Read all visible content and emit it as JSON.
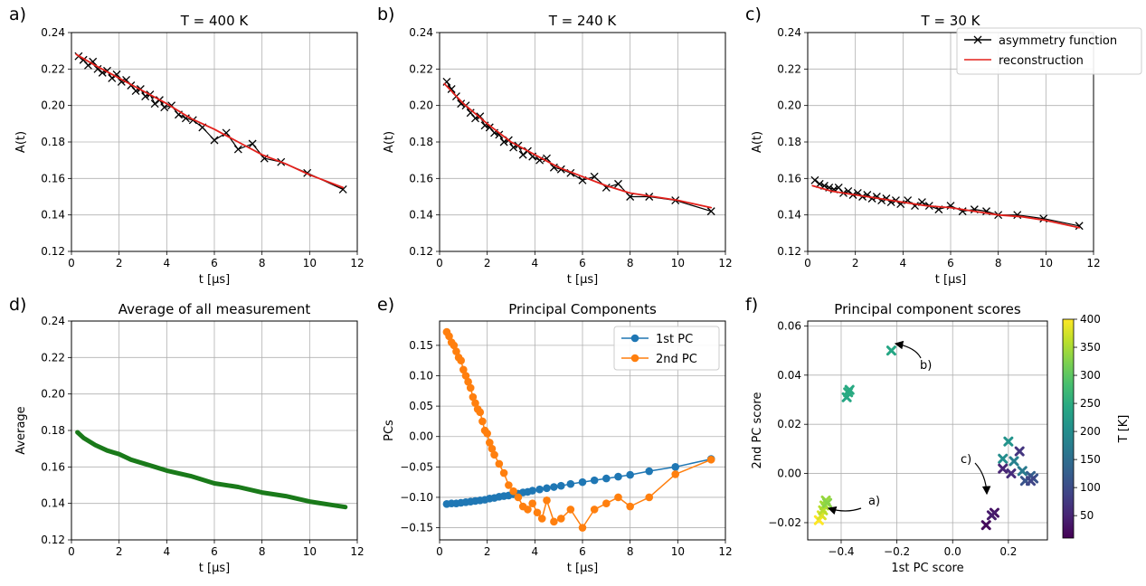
{
  "chart_data": [
    {
      "panel_label": "a)",
      "type": "line",
      "title": "T = 400 K",
      "xlabel": "t [μs]",
      "ylabel": "A(t)",
      "xlim": [
        0,
        12
      ],
      "ylim": [
        0.12,
        0.24
      ],
      "xticks": [
        "0",
        "2",
        "4",
        "6",
        "8",
        "10",
        "12"
      ],
      "yticks": [
        "0.12",
        "0.14",
        "0.16",
        "0.18",
        "0.20",
        "0.22",
        "0.24"
      ],
      "grid": true,
      "series": [
        {
          "name": "asymmetry function",
          "marker": "x",
          "color": "#000000",
          "x": [
            0.3,
            0.5,
            0.7,
            0.9,
            1.1,
            1.3,
            1.5,
            1.7,
            1.9,
            2.1,
            2.3,
            2.5,
            2.7,
            2.9,
            3.1,
            3.3,
            3.5,
            3.7,
            3.9,
            4.2,
            4.5,
            4.8,
            5.1,
            5.5,
            6.0,
            6.5,
            7.0,
            7.6,
            8.1,
            8.8,
            9.9,
            11.4
          ],
          "y": [
            0.227,
            0.225,
            0.222,
            0.224,
            0.22,
            0.218,
            0.219,
            0.215,
            0.217,
            0.213,
            0.214,
            0.211,
            0.208,
            0.209,
            0.205,
            0.206,
            0.201,
            0.203,
            0.199,
            0.2,
            0.195,
            0.193,
            0.192,
            0.188,
            0.181,
            0.185,
            0.176,
            0.179,
            0.171,
            0.169,
            0.163,
            0.154
          ]
        },
        {
          "name": "reconstruction",
          "color": "#e3201b",
          "x": [
            0.2,
            1,
            2,
            3,
            4,
            5,
            6,
            7,
            8,
            9,
            10,
            11.4
          ],
          "y": [
            0.228,
            0.222,
            0.215,
            0.208,
            0.201,
            0.193,
            0.187,
            0.18,
            0.173,
            0.168,
            0.162,
            0.155
          ]
        }
      ]
    },
    {
      "panel_label": "b)",
      "type": "line",
      "title": "T = 240 K",
      "xlabel": "t [μs]",
      "ylabel": "A(t)",
      "xlim": [
        0,
        12
      ],
      "ylim": [
        0.12,
        0.24
      ],
      "xticks": [
        "0",
        "2",
        "4",
        "6",
        "8",
        "10",
        "12"
      ],
      "yticks": [
        "0.12",
        "0.14",
        "0.16",
        "0.18",
        "0.20",
        "0.22",
        "0.24"
      ],
      "grid": true,
      "series": [
        {
          "name": "asymmetry function",
          "marker": "x",
          "color": "#000000",
          "x": [
            0.3,
            0.5,
            0.7,
            0.9,
            1.1,
            1.3,
            1.5,
            1.7,
            1.9,
            2.1,
            2.3,
            2.5,
            2.7,
            2.9,
            3.1,
            3.3,
            3.5,
            3.7,
            3.9,
            4.2,
            4.5,
            4.8,
            5.1,
            5.5,
            6.0,
            6.5,
            7.0,
            7.5,
            8.0,
            8.8,
            9.9,
            11.4
          ],
          "y": [
            0.213,
            0.209,
            0.205,
            0.201,
            0.2,
            0.196,
            0.193,
            0.194,
            0.189,
            0.188,
            0.185,
            0.184,
            0.18,
            0.181,
            0.177,
            0.178,
            0.173,
            0.175,
            0.172,
            0.17,
            0.171,
            0.166,
            0.165,
            0.163,
            0.159,
            0.161,
            0.155,
            0.157,
            0.15,
            0.15,
            0.148,
            0.142
          ]
        },
        {
          "name": "reconstruction",
          "color": "#e3201b",
          "x": [
            0.2,
            1,
            2,
            3,
            4,
            5,
            6,
            7,
            8,
            9,
            10,
            11.4
          ],
          "y": [
            0.212,
            0.201,
            0.19,
            0.18,
            0.173,
            0.166,
            0.161,
            0.156,
            0.152,
            0.15,
            0.148,
            0.144
          ]
        }
      ]
    },
    {
      "panel_label": "c)",
      "type": "line",
      "title": "T = 30 K",
      "xlabel": "t [μs]",
      "ylabel": "A(t)",
      "xlim": [
        0,
        12
      ],
      "ylim": [
        0.12,
        0.24
      ],
      "xticks": [
        "0",
        "2",
        "4",
        "6",
        "8",
        "10",
        "12"
      ],
      "yticks": [
        "0.12",
        "0.14",
        "0.16",
        "0.18",
        "0.20",
        "0.22",
        "0.24"
      ],
      "grid": true,
      "legend": {
        "placement": "upper right",
        "entries": [
          "asymmetry function",
          "reconstruction"
        ]
      },
      "series": [
        {
          "name": "asymmetry function",
          "marker": "x",
          "color": "#000000",
          "x": [
            0.3,
            0.5,
            0.7,
            0.9,
            1.1,
            1.3,
            1.5,
            1.7,
            1.9,
            2.1,
            2.3,
            2.5,
            2.7,
            2.9,
            3.1,
            3.3,
            3.5,
            3.7,
            3.9,
            4.2,
            4.5,
            4.8,
            5.1,
            5.5,
            6.0,
            6.5,
            7.0,
            7.5,
            8.0,
            8.8,
            9.9,
            11.4
          ],
          "y": [
            0.159,
            0.157,
            0.156,
            0.155,
            0.154,
            0.155,
            0.152,
            0.153,
            0.151,
            0.152,
            0.15,
            0.151,
            0.149,
            0.15,
            0.148,
            0.149,
            0.147,
            0.148,
            0.146,
            0.148,
            0.145,
            0.147,
            0.145,
            0.143,
            0.145,
            0.142,
            0.143,
            0.142,
            0.14,
            0.14,
            0.138,
            0.134
          ]
        },
        {
          "name": "reconstruction",
          "color": "#e3201b",
          "x": [
            0.2,
            1,
            2,
            3,
            4,
            5,
            6,
            7,
            8,
            9,
            10,
            11.4
          ],
          "y": [
            0.156,
            0.153,
            0.151,
            0.149,
            0.147,
            0.145,
            0.144,
            0.142,
            0.14,
            0.139,
            0.137,
            0.133
          ]
        }
      ]
    },
    {
      "panel_label": "d)",
      "type": "line",
      "title": "Average of all measurement",
      "xlabel": "t [μs]",
      "ylabel": "Average",
      "xlim": [
        0,
        12
      ],
      "ylim": [
        0.12,
        0.24
      ],
      "xticks": [
        "0",
        "2",
        "4",
        "6",
        "8",
        "10",
        "12"
      ],
      "yticks": [
        "0.12",
        "0.14",
        "0.16",
        "0.18",
        "0.20",
        "0.22",
        "0.24"
      ],
      "grid": true,
      "series": [
        {
          "color": "#1a7a1a",
          "x": [
            0.25,
            0.5,
            1,
            1.5,
            2,
            2.5,
            3,
            3.5,
            4,
            5,
            6,
            7,
            8,
            9,
            10,
            11,
            11.5
          ],
          "y": [
            0.179,
            0.176,
            0.172,
            0.169,
            0.167,
            0.164,
            0.162,
            0.16,
            0.158,
            0.155,
            0.151,
            0.149,
            0.146,
            0.144,
            0.141,
            0.139,
            0.138
          ]
        }
      ]
    },
    {
      "panel_label": "e)",
      "type": "line",
      "title": "Principal Components",
      "xlabel": "t [μs]",
      "ylabel": "PCs",
      "xlim": [
        0,
        12
      ],
      "ylim": [
        -0.17,
        0.19
      ],
      "xticks": [
        "0",
        "2",
        "4",
        "6",
        "8",
        "10",
        "12"
      ],
      "yticks": [
        "−0.15",
        "−0.10",
        "−0.05",
        "0.00",
        "0.05",
        "0.10",
        "0.15"
      ],
      "grid": true,
      "legend": {
        "placement": "upper right",
        "entries": [
          "1st PC",
          "2nd PC"
        ]
      },
      "series": [
        {
          "name": "1st PC",
          "marker": "o",
          "color": "#1f77b4",
          "x": [
            0.3,
            0.5,
            0.7,
            0.9,
            1.1,
            1.3,
            1.5,
            1.7,
            1.9,
            2.1,
            2.3,
            2.5,
            2.7,
            2.9,
            3.1,
            3.3,
            3.5,
            3.7,
            3.9,
            4.2,
            4.5,
            4.8,
            5.1,
            5.5,
            6.0,
            6.5,
            7.0,
            7.5,
            8.0,
            8.8,
            9.9,
            11.4
          ],
          "y": [
            -0.111,
            -0.11,
            -0.11,
            -0.109,
            -0.108,
            -0.107,
            -0.106,
            -0.105,
            -0.104,
            -0.102,
            -0.101,
            -0.099,
            -0.098,
            -0.097,
            -0.095,
            -0.094,
            -0.092,
            -0.091,
            -0.089,
            -0.087,
            -0.085,
            -0.083,
            -0.081,
            -0.078,
            -0.075,
            -0.072,
            -0.069,
            -0.066,
            -0.063,
            -0.057,
            -0.05,
            -0.037
          ]
        },
        {
          "name": "2nd PC",
          "marker": "o",
          "color": "#ff7f0e",
          "x": [
            0.3,
            0.4,
            0.5,
            0.6,
            0.7,
            0.8,
            0.9,
            1.0,
            1.1,
            1.2,
            1.3,
            1.4,
            1.5,
            1.6,
            1.7,
            1.8,
            1.9,
            2.0,
            2.1,
            2.2,
            2.3,
            2.5,
            2.7,
            2.9,
            3.1,
            3.3,
            3.5,
            3.7,
            3.9,
            4.1,
            4.3,
            4.5,
            4.8,
            5.1,
            5.5,
            6.0,
            6.5,
            7.0,
            7.5,
            8.0,
            8.8,
            9.9,
            11.4
          ],
          "y": [
            0.172,
            0.165,
            0.155,
            0.15,
            0.14,
            0.13,
            0.125,
            0.11,
            0.1,
            0.09,
            0.08,
            0.065,
            0.055,
            0.045,
            0.04,
            0.025,
            0.01,
            0.005,
            -0.01,
            -0.02,
            -0.03,
            -0.045,
            -0.06,
            -0.08,
            -0.09,
            -0.1,
            -0.115,
            -0.12,
            -0.11,
            -0.125,
            -0.135,
            -0.105,
            -0.14,
            -0.135,
            -0.12,
            -0.15,
            -0.12,
            -0.11,
            -0.1,
            -0.115,
            -0.1,
            -0.062,
            -0.038
          ]
        }
      ]
    },
    {
      "panel_label": "f)",
      "type": "scatter",
      "title": "Principal component scores",
      "xlabel": "1st PC score",
      "ylabel": "2nd PC score",
      "xlim": [
        -0.52,
        0.34
      ],
      "ylim": [
        -0.027,
        0.062
      ],
      "xticks": [
        "−0.4",
        "−0.2",
        "0.0",
        "0.2"
      ],
      "yticks": [
        "−0.02",
        "0.00",
        "0.02",
        "0.04",
        "0.06"
      ],
      "grid": true,
      "colorbar": {
        "label": "T [K]",
        "ticks": [
          "50",
          "100",
          "150",
          "200",
          "250",
          "300",
          "350",
          "400"
        ],
        "range": [
          10,
          400
        ]
      },
      "annotations": [
        "a)",
        "b)",
        "c)"
      ],
      "points": {
        "x": [
          -0.48,
          -0.47,
          -0.465,
          -0.46,
          -0.455,
          -0.45,
          -0.38,
          -0.375,
          -0.37,
          -0.22,
          0.18,
          0.2,
          0.22,
          0.25,
          0.28,
          0.29,
          0.21,
          0.18,
          0.24,
          0.26,
          0.28,
          0.15,
          0.14,
          0.12
        ],
        "y": [
          -0.019,
          -0.017,
          -0.015,
          -0.013,
          -0.011,
          -0.012,
          0.031,
          0.033,
          0.034,
          0.05,
          0.006,
          0.013,
          0.005,
          0.001,
          -0.001,
          -0.002,
          0.0,
          0.002,
          0.009,
          -0.003,
          -0.003,
          -0.016,
          -0.017,
          -0.021
        ],
        "T": [
          400,
          380,
          360,
          350,
          340,
          330,
          240,
          250,
          245,
          240,
          200,
          210,
          180,
          170,
          130,
          110,
          60,
          50,
          70,
          110,
          90,
          30,
          40,
          20
        ]
      }
    }
  ]
}
